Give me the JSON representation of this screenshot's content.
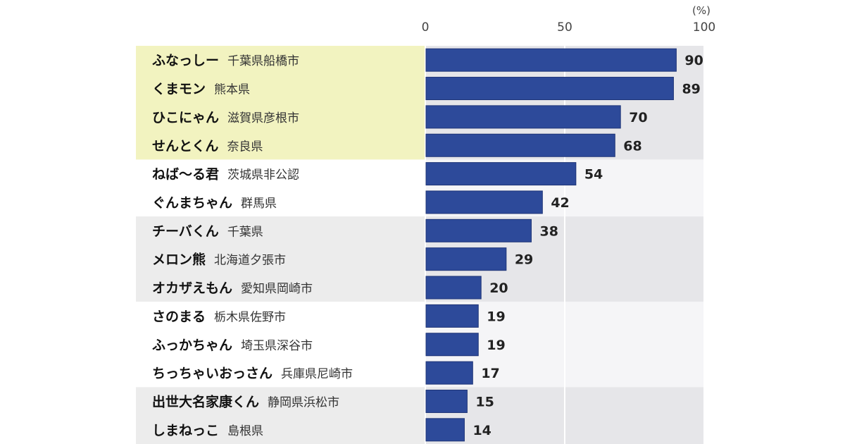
{
  "chart_data": {
    "type": "bar",
    "orientation": "horizontal",
    "unit_label": "(%)",
    "xlim": [
      0,
      100
    ],
    "xticks": [
      0,
      50,
      100
    ],
    "categories": [
      {
        "name": "ふなっしー",
        "region": "千葉県船橋市"
      },
      {
        "name": "くまモン",
        "region": "熊本県"
      },
      {
        "name": "ひこにゃん",
        "region": "滋賀県彦根市"
      },
      {
        "name": "せんとくん",
        "region": "奈良県"
      },
      {
        "name": "ねば〜る君",
        "region": "茨城県非公認"
      },
      {
        "name": "ぐんまちゃん",
        "region": "群馬県"
      },
      {
        "name": "チーバくん",
        "region": "千葉県"
      },
      {
        "name": "メロン熊",
        "region": "北海道夕張市"
      },
      {
        "name": "オカザえもん",
        "region": "愛知県岡崎市"
      },
      {
        "name": "さのまる",
        "region": "栃木県佐野市"
      },
      {
        "name": "ふっかちゃん",
        "region": "埼玉県深谷市"
      },
      {
        "name": "ちっちゃいおっさん",
        "region": "兵庫県尼崎市"
      },
      {
        "name": "出世大名家康くん",
        "region": "静岡県浜松市"
      },
      {
        "name": "しまねっこ",
        "region": "島根県"
      }
    ],
    "values": [
      90,
      89,
      70,
      68,
      54,
      42,
      38,
      29,
      20,
      19,
      19,
      17,
      15,
      14
    ],
    "groups": [
      {
        "rows": [
          0,
          1,
          2,
          3
        ],
        "label_bg": "#f2f3c0",
        "plot_bg": "#e6e6e9"
      },
      {
        "rows": [
          4,
          5
        ],
        "label_bg": "#ffffff",
        "plot_bg": "#f5f5f7"
      },
      {
        "rows": [
          6,
          7,
          8
        ],
        "label_bg": "#ececec",
        "plot_bg": "#e6e6e9"
      },
      {
        "rows": [
          9,
          10,
          11
        ],
        "label_bg": "#ffffff",
        "plot_bg": "#f5f5f7"
      },
      {
        "rows": [
          12,
          13
        ],
        "label_bg": "#ececec",
        "plot_bg": "#e6e6e9"
      }
    ],
    "bar_color": "#2d4a9a",
    "grid": true
  }
}
